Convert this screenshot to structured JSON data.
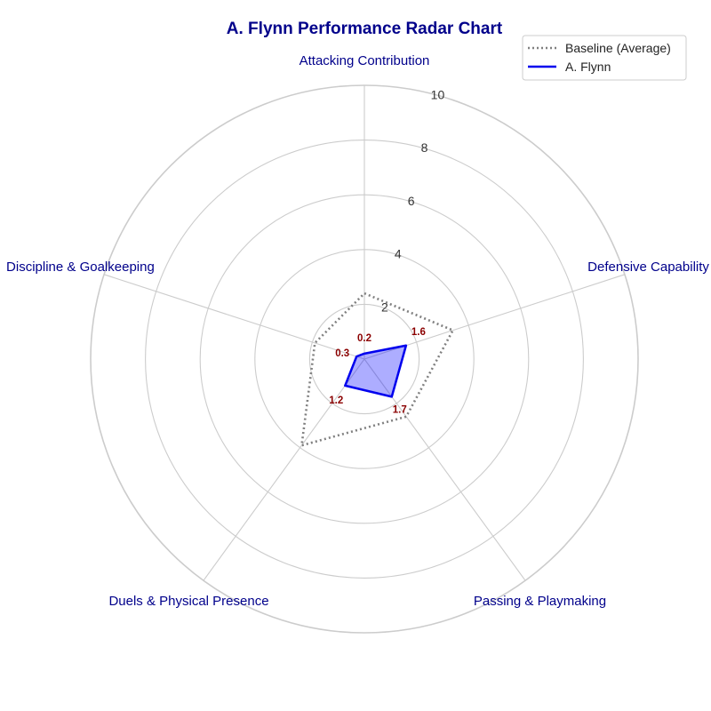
{
  "chart_data": {
    "type": "radar",
    "title": "A. Flynn Performance Radar Chart",
    "categories": [
      "Attacking Contribution",
      "Defensive Capability",
      "Passing & Playmaking",
      "Duels & Physical Presence",
      "Discipline & Goalkeeping"
    ],
    "rlim": [
      0,
      10
    ],
    "rticks": [
      2,
      4,
      6,
      8,
      10
    ],
    "rtick_labels": [
      "2",
      "4",
      "6",
      "8",
      "10"
    ],
    "grid": true,
    "legend_position": "top-right",
    "series": [
      {
        "name": "Baseline (Average)",
        "values": [
          2.4,
          3.4,
          2.6,
          3.9,
          1.9
        ],
        "color": "#808080",
        "style": "dotted",
        "fill": false
      },
      {
        "name": "A. Flynn",
        "values": [
          0.2,
          1.6,
          1.7,
          1.2,
          0.3
        ],
        "color": "#0000ee",
        "style": "solid",
        "fill": true,
        "fill_color": "#0000ff"
      }
    ],
    "data_labels": [
      "0.2",
      "1.6",
      "1.7",
      "1.2",
      "0.3"
    ]
  }
}
